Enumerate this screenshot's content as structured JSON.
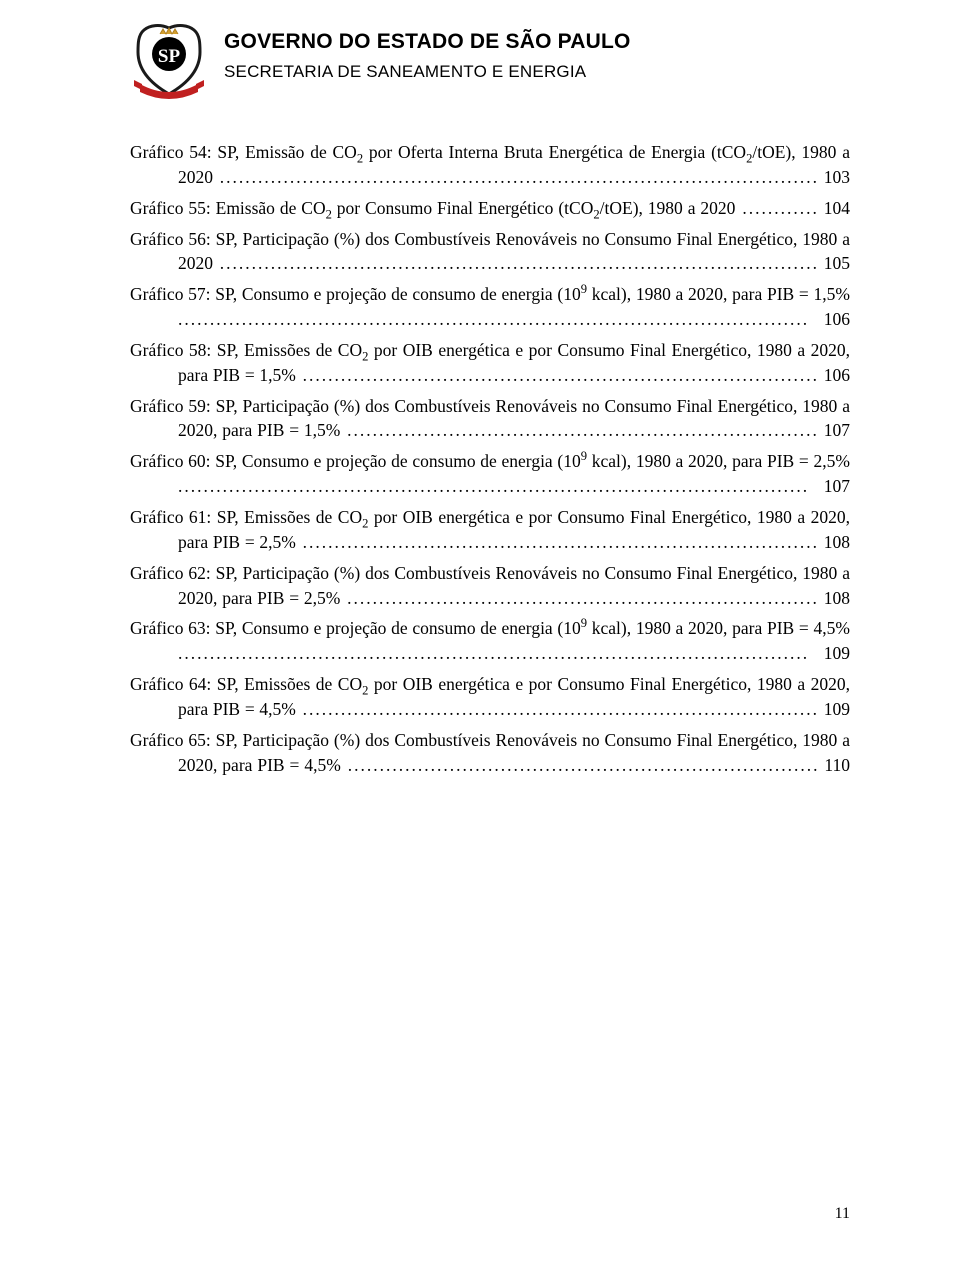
{
  "header": {
    "title_main": "GOVERNO DO ESTADO DE SÃO PAULO",
    "title_sub": "SECRETARIA DE SANEAMENTO E ENERGIA"
  },
  "logo": {
    "ribbon_color": "#c02020",
    "shield_border": "#1a1a1a",
    "shield_fill": "#ffffff",
    "crown_color": "#d4a030",
    "letters": "SP",
    "letters_color": "#ffffff",
    "circle_fill": "#000000"
  },
  "toc_entries": [
    {
      "text_parts": [
        "Gráfico 54: SP, Emissão de CO",
        "2",
        " por Oferta Interna Bruta Energética de Energia (tCO",
        "2",
        "/tOE), 1980 a 2020"
      ],
      "sub_indices": [
        1,
        3
      ],
      "page": "103"
    },
    {
      "text_parts": [
        "Gráfico 55: Emissão de CO",
        "2",
        " por Consumo Final Energético (tCO",
        "2",
        "/tOE), 1980 a 2020"
      ],
      "sub_indices": [
        1,
        3
      ],
      "page": "104"
    },
    {
      "text_parts": [
        "Gráfico 56: SP, Participação (%) dos Combustíveis Renováveis no Consumo Final Energético,  1980 a 2020"
      ],
      "sub_indices": [],
      "page": "105"
    },
    {
      "text_parts": [
        "Gráfico 57: SP, Consumo e projeção de consumo de energia (10",
        "9",
        " kcal), 1980 a 2020, para PIB = 1,5%"
      ],
      "sup_indices": [
        1
      ],
      "page": "106"
    },
    {
      "text_parts": [
        "Gráfico 58: SP, Emissões de CO",
        "2",
        " por OIB energética e por Consumo Final Energético, 1980 a 2020, para PIB = 1,5%"
      ],
      "sub_indices": [
        1
      ],
      "page": "106"
    },
    {
      "text_parts": [
        "Gráfico 59: SP, Participação (%) dos Combustíveis Renováveis no Consumo Final Energético,  1980 a 2020, para PIB = 1,5%"
      ],
      "sub_indices": [],
      "page": "107"
    },
    {
      "text_parts": [
        "Gráfico 60: SP, Consumo e projeção de consumo de energia (10",
        "9",
        " kcal), 1980 a 2020, para PIB = 2,5%"
      ],
      "sup_indices": [
        1
      ],
      "page": "107"
    },
    {
      "text_parts": [
        "Gráfico 61: SP, Emissões de CO",
        "2",
        " por OIB energética e por Consumo Final Energético, 1980 a 2020, para PIB = 2,5%"
      ],
      "sub_indices": [
        1
      ],
      "page": "108"
    },
    {
      "text_parts": [
        "Gráfico 62: SP, Participação (%) dos Combustíveis Renováveis no Consumo Final Energético,  1980 a 2020, para PIB = 2,5%"
      ],
      "sub_indices": [],
      "page": "108"
    },
    {
      "text_parts": [
        "Gráfico 63: SP, Consumo e projeção de consumo de energia (10",
        "9",
        " kcal), 1980 a 2020, para PIB = 4,5%"
      ],
      "sup_indices": [
        1
      ],
      "page": "109"
    },
    {
      "text_parts": [
        "Gráfico 64: SP, Emissões de CO",
        "2",
        " por OIB energética e por Consumo Final Energético, 1980 a 2020, para PIB = 4,5%"
      ],
      "sub_indices": [
        1
      ],
      "page": "109"
    },
    {
      "text_parts": [
        "Gráfico 65: SP, Participação (%) dos Combustíveis Renováveis no Consumo Final Energético,  1980 a 2020, para PIB = 4,5%"
      ],
      "sub_indices": [],
      "page": "110"
    }
  ],
  "page_number": "11"
}
